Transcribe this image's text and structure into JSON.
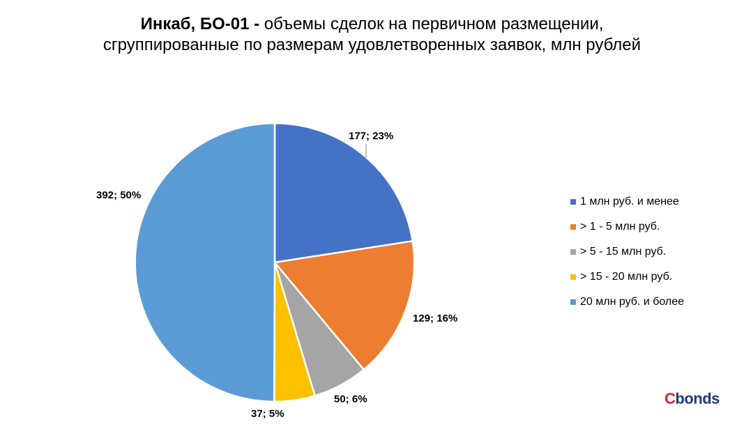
{
  "title": {
    "bold_part": "Инкаб, БО-01 -",
    "rest_line1": " объемы сделок на первичном размещении,",
    "line2": "сгруппированные по размерам удовлетворенных заявок, млн рублей"
  },
  "chart_data": {
    "type": "pie",
    "title": "Инкаб, БО-01 - объемы сделок на первичном размещении, сгруппированные по размерам удовлетворенных заявок, млн рублей",
    "categories": [
      "1 млн руб. и менее",
      "> 1 - 5 млн руб.",
      "> 5 - 15 млн руб.",
      "> 15 - 20 млн руб.",
      "20 млн руб. и более"
    ],
    "values": [
      177,
      129,
      50,
      37,
      392
    ],
    "data_labels": [
      "177; 23%",
      "129; 16%",
      "50; 6%",
      "37; 5%",
      "392; 50%"
    ],
    "colors": [
      "#4472c4",
      "#ed7d31",
      "#a5a5a5",
      "#ffc000",
      "#5b9bd5"
    ],
    "legend_position": "right"
  },
  "logo": {
    "c": "C",
    "rest": "bonds"
  }
}
